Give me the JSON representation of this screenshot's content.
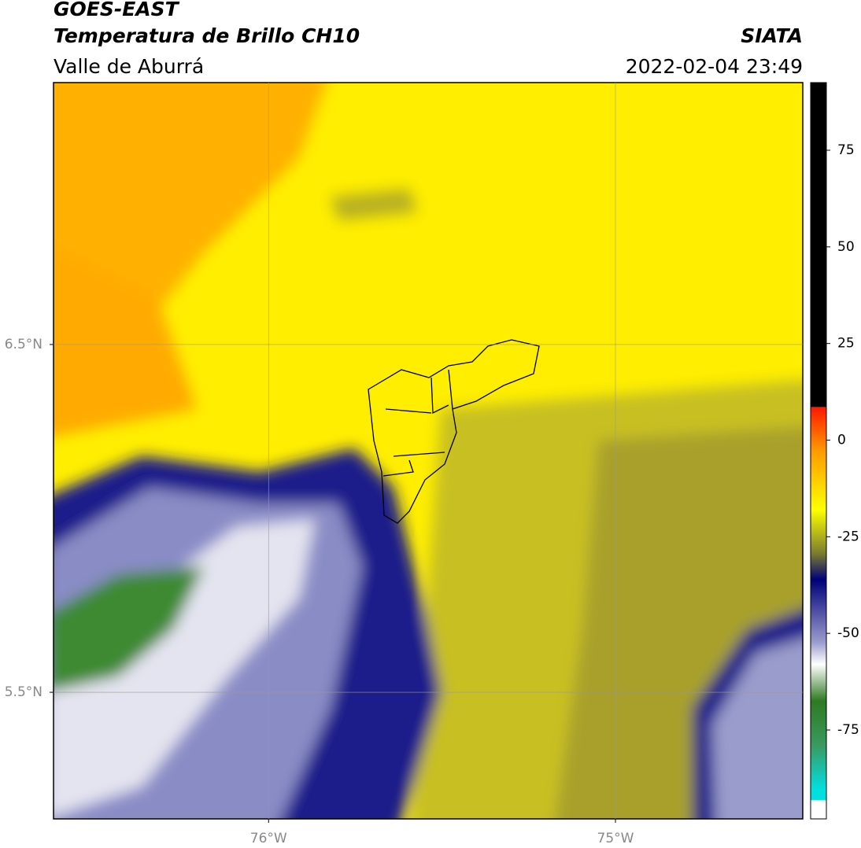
{
  "chart_data": {
    "type": "map",
    "title": "GOES-EAST",
    "subtitle": "Temperatura de Brillo CH10",
    "region": "Valle de Aburrá",
    "source": "SIATA",
    "timestamp": "2022-02-04 23:49",
    "xlim": [
      -76.62,
      -74.46
    ],
    "ylim": [
      5.136,
      7.253
    ],
    "xticks": [
      {
        "value": -76,
        "label": "76°W"
      },
      {
        "value": -75,
        "label": "75°W"
      }
    ],
    "yticks": [
      {
        "value": 5.5,
        "label": "5.5°N"
      },
      {
        "value": 6.5,
        "label": "6.5°N"
      }
    ],
    "grid": true,
    "colorbar": {
      "lim": [
        -98,
        92.5
      ],
      "ticks": [
        -75,
        -50,
        -25,
        0,
        25,
        50,
        75
      ]
    }
  }
}
